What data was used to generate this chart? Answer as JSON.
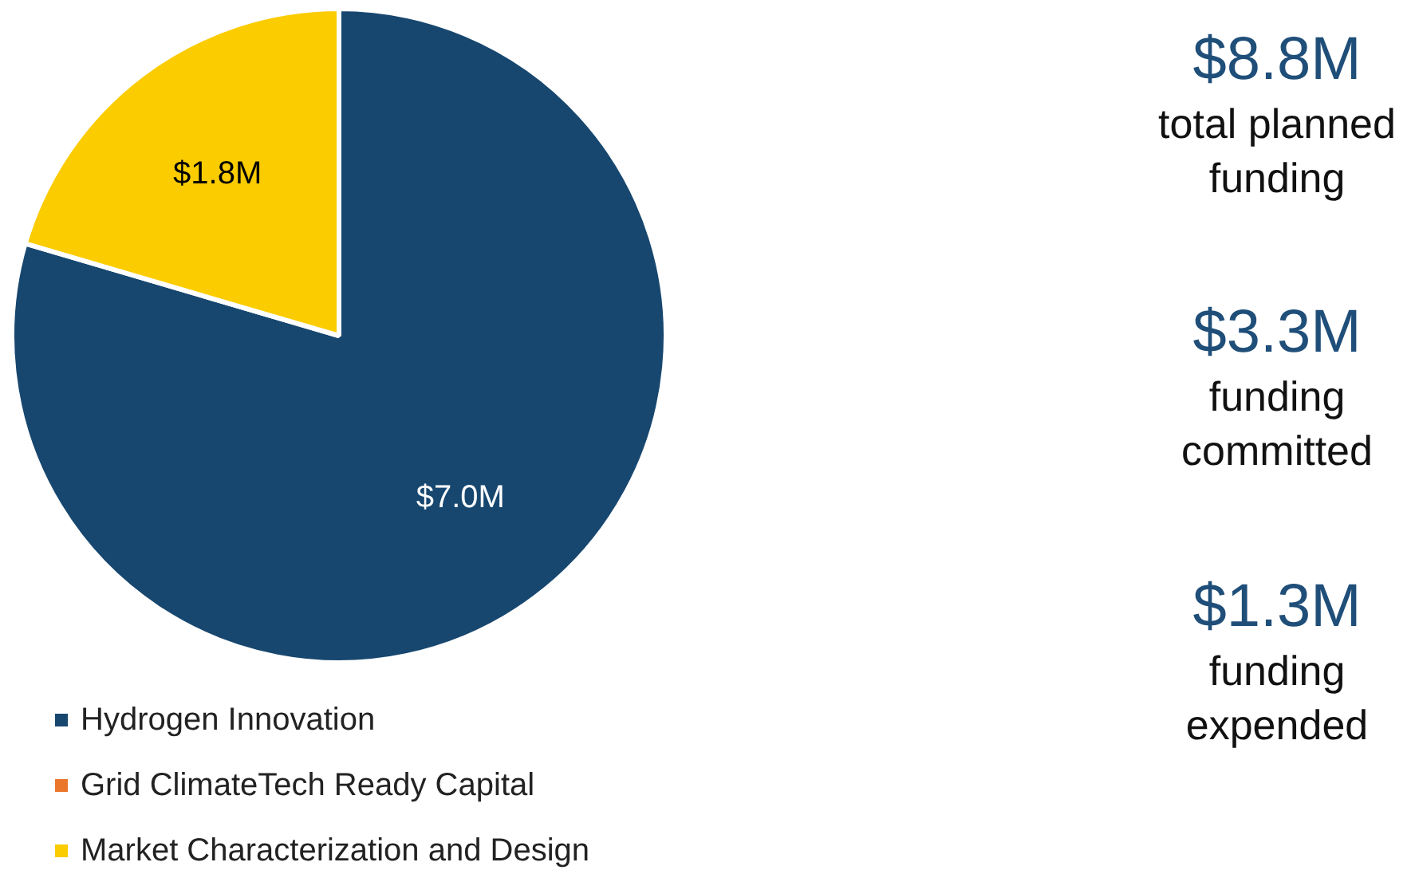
{
  "chart_data": {
    "type": "pie",
    "categories": [
      "Hydrogen Innovation",
      "Grid ClimateTech Ready Capital",
      "Market Characterization and Design"
    ],
    "values": [
      7.0,
      0,
      1.8
    ],
    "colors": [
      "#17476f",
      "#e9762b",
      "#fbcc00"
    ],
    "value_labels": [
      "$7.0M",
      null,
      "$1.8M"
    ],
    "legend": "bottom",
    "annotations": [
      "$8.8M",
      "total planned funding",
      "$3.3M",
      "funding committed",
      "$1.3M",
      "funding expended"
    ]
  }
}
